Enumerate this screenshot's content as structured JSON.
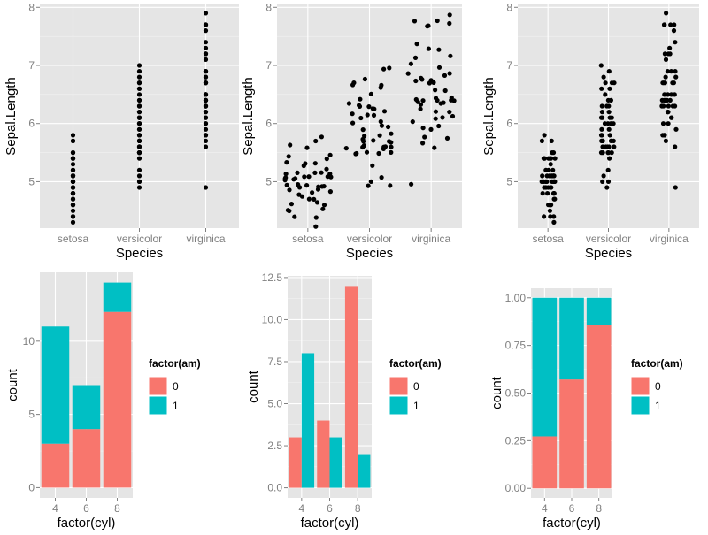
{
  "colors": {
    "panel": "#e5e5e5",
    "grid_major": "#ffffff",
    "grid_minor": "#f2f2f2",
    "point": "#000000",
    "am0": "#f8766d",
    "am1": "#00bfc4",
    "tick_text": "#7f7f7f"
  },
  "chart_data": [
    {
      "id": "p1",
      "type": "scatter",
      "position": "identity",
      "title": "",
      "xlabel": "Species",
      "ylabel": "Sepal.Length",
      "categories": [
        "setosa",
        "versicolor",
        "virginica"
      ],
      "y_ticks": [
        5,
        6,
        7,
        8
      ],
      "ylim": [
        4.2,
        8.05
      ],
      "series": [
        {
          "name": "setosa",
          "values": [
            5.1,
            4.9,
            4.7,
            4.6,
            5.0,
            5.4,
            4.6,
            5.0,
            4.4,
            4.9,
            5.4,
            4.8,
            4.8,
            4.3,
            5.8,
            5.7,
            5.4,
            5.1,
            5.7,
            5.1,
            5.4,
            5.1,
            4.6,
            5.1,
            4.8,
            5.0,
            5.0,
            5.2,
            5.2,
            4.7,
            4.8,
            5.4,
            5.2,
            5.5,
            4.9,
            5.0,
            5.5,
            4.9,
            4.4,
            5.1,
            5.0,
            4.5,
            4.4,
            5.0,
            5.1,
            4.8,
            5.1,
            4.6,
            5.3,
            5.0
          ]
        },
        {
          "name": "versicolor",
          "values": [
            7.0,
            6.4,
            6.9,
            5.5,
            6.5,
            5.7,
            6.3,
            4.9,
            6.6,
            5.2,
            5.0,
            5.9,
            6.0,
            6.1,
            5.6,
            6.7,
            5.6,
            5.8,
            6.2,
            5.6,
            5.9,
            6.1,
            6.3,
            6.1,
            6.4,
            6.6,
            6.8,
            6.7,
            6.0,
            5.7,
            5.5,
            5.5,
            5.8,
            6.0,
            5.4,
            6.0,
            6.7,
            6.3,
            5.6,
            5.5,
            5.5,
            6.1,
            5.8,
            5.0,
            5.6,
            5.7,
            5.7,
            6.2,
            5.1,
            5.7
          ]
        },
        {
          "name": "virginica",
          "values": [
            6.3,
            5.8,
            7.1,
            6.3,
            6.5,
            7.6,
            4.9,
            7.3,
            6.7,
            7.2,
            6.5,
            6.4,
            6.8,
            5.7,
            5.8,
            6.4,
            6.5,
            7.7,
            7.7,
            6.0,
            6.9,
            5.6,
            7.7,
            6.3,
            6.7,
            7.2,
            6.2,
            6.1,
            6.4,
            7.2,
            7.4,
            7.9,
            6.4,
            6.3,
            6.1,
            7.7,
            6.3,
            6.4,
            6.0,
            6.9,
            6.7,
            6.9,
            5.8,
            6.8,
            6.7,
            6.7,
            6.3,
            6.5,
            6.2,
            5.9
          ]
        }
      ]
    },
    {
      "id": "p2",
      "type": "scatter",
      "position": "jitter",
      "title": "",
      "xlabel": "Species",
      "ylabel": "Sepal.Length",
      "categories": [
        "setosa",
        "versicolor",
        "virginica"
      ],
      "y_ticks": [
        5,
        6,
        7,
        8
      ],
      "ylim": [
        4.2,
        8.05
      ],
      "jitter_x": 0.38,
      "jitter_y": 0.1,
      "series_ref": "p1"
    },
    {
      "id": "p3",
      "type": "scatter",
      "position": "jitter",
      "title": "",
      "xlabel": "Species",
      "ylabel": "Sepal.Length",
      "categories": [
        "setosa",
        "versicolor",
        "virginica"
      ],
      "y_ticks": [
        5,
        6,
        7,
        8
      ],
      "ylim": [
        4.2,
        8.05
      ],
      "jitter_x": 0.12,
      "jitter_y": 0.0,
      "series_ref": "p1"
    },
    {
      "id": "p4",
      "type": "bar",
      "position": "stack",
      "title": "",
      "xlabel": "factor(cyl)",
      "ylabel": "count",
      "categories": [
        "4",
        "6",
        "8"
      ],
      "y_ticks": [
        0,
        5,
        10
      ],
      "y_tick_labels": [
        "0",
        "5",
        "10"
      ],
      "ylim": [
        -0.7,
        14.7
      ],
      "series": [
        {
          "name": "0",
          "values": [
            3,
            4,
            12
          ]
        },
        {
          "name": "1",
          "values": [
            8,
            3,
            2
          ]
        }
      ],
      "legend": {
        "title": "factor(am)",
        "entries": [
          "0",
          "1"
        ],
        "position": "right"
      }
    },
    {
      "id": "p5",
      "type": "bar",
      "position": "dodge",
      "title": "",
      "xlabel": "factor(cyl)",
      "ylabel": "count",
      "categories": [
        "4",
        "6",
        "8"
      ],
      "y_ticks": [
        0,
        2.5,
        5,
        7.5,
        10,
        12.5
      ],
      "y_tick_labels": [
        "0.0",
        "2.5",
        "5.0",
        "7.5",
        "10.0",
        "12.5"
      ],
      "ylim": [
        -0.6,
        12.6
      ],
      "series": [
        {
          "name": "0",
          "values": [
            3,
            4,
            12
          ]
        },
        {
          "name": "1",
          "values": [
            8,
            3,
            2
          ]
        }
      ],
      "legend": {
        "title": "factor(am)",
        "entries": [
          "0",
          "1"
        ],
        "position": "right"
      }
    },
    {
      "id": "p6",
      "type": "bar",
      "position": "fill",
      "title": "",
      "xlabel": "factor(cyl)",
      "ylabel": "count",
      "categories": [
        "4",
        "6",
        "8"
      ],
      "y_ticks": [
        0,
        0.25,
        0.5,
        0.75,
        1
      ],
      "y_tick_labels": [
        "0.00",
        "0.25",
        "0.50",
        "0.75",
        "1.00"
      ],
      "ylim": [
        -0.05,
        1.05
      ],
      "series": [
        {
          "name": "0",
          "values": [
            0.2727,
            0.5714,
            0.8571
          ]
        },
        {
          "name": "1",
          "values": [
            0.7273,
            0.4286,
            0.1429
          ]
        }
      ],
      "legend": {
        "title": "factor(am)",
        "entries": [
          "0",
          "1"
        ],
        "position": "right"
      }
    }
  ]
}
